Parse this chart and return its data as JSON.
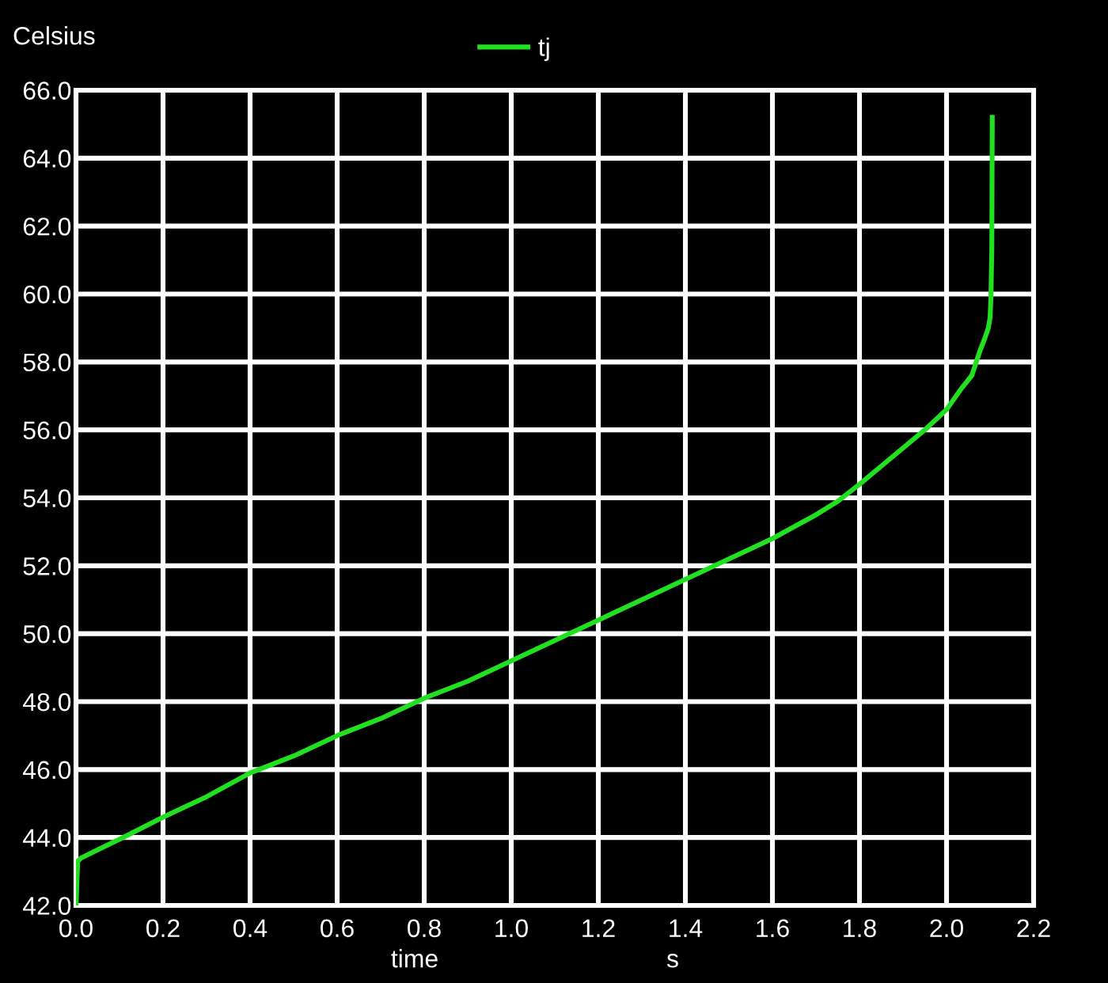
{
  "chart_data": {
    "type": "line",
    "xlabel": "time",
    "ylabel": "Celsius",
    "annotations": [
      "s"
    ],
    "x": [
      0,
      0.004,
      0.012,
      0.06,
      0.108,
      0.2,
      0.3,
      0.4,
      0.5,
      0.6,
      0.7,
      0.8,
      0.9,
      1.0,
      1.1,
      1.2,
      1.3,
      1.4,
      1.5,
      1.6,
      1.7,
      1.75,
      1.8,
      1.875,
      1.95,
      2.0,
      2.033,
      2.058,
      2.076,
      2.088,
      2.096,
      2.1,
      2.102,
      2.104,
      2.105
    ],
    "series": [
      {
        "name": "tj",
        "color": "#20e020",
        "values": [
          42.0,
          43.3,
          43.4,
          43.7,
          44.0,
          44.6,
          45.2,
          45.9,
          46.4,
          47.0,
          47.5,
          48.1,
          48.6,
          49.2,
          49.8,
          50.4,
          51.0,
          51.6,
          52.2,
          52.8,
          53.5,
          53.9,
          54.4,
          55.2,
          56.0,
          56.6,
          57.2,
          57.6,
          58.3,
          58.7,
          59.0,
          59.3,
          59.9,
          61.3,
          65.2
        ]
      }
    ],
    "xlim": [
      0,
      2.2
    ],
    "ylim": [
      42,
      66
    ],
    "xticks": [
      {
        "value": 0,
        "label": "0.0"
      },
      {
        "value": 0.2,
        "label": "0.2"
      },
      {
        "value": 0.4,
        "label": "0.4"
      },
      {
        "value": 0.6,
        "label": "0.6"
      },
      {
        "value": 0.8,
        "label": "0.8"
      },
      {
        "value": 1.0,
        "label": "1.0"
      },
      {
        "value": 1.2,
        "label": "1.2"
      },
      {
        "value": 1.4,
        "label": "1.4"
      },
      {
        "value": 1.6,
        "label": "1.6"
      },
      {
        "value": 1.8,
        "label": "1.8"
      },
      {
        "value": 2.0,
        "label": "2.0"
      },
      {
        "value": 2.2,
        "label": "2.2"
      }
    ],
    "yticks": [
      {
        "value": 42,
        "label": "42.0"
      },
      {
        "value": 44,
        "label": "44.0"
      },
      {
        "value": 46,
        "label": "46.0"
      },
      {
        "value": 48,
        "label": "48.0"
      },
      {
        "value": 50,
        "label": "50.0"
      },
      {
        "value": 52,
        "label": "52.0"
      },
      {
        "value": 54,
        "label": "54.0"
      },
      {
        "value": 56,
        "label": "56.0"
      },
      {
        "value": 58,
        "label": "58.0"
      },
      {
        "value": 60,
        "label": "60.0"
      },
      {
        "value": 62,
        "label": "62.0"
      },
      {
        "value": 64,
        "label": "64.0"
      },
      {
        "value": 66,
        "label": "66.0"
      }
    ],
    "grid": true,
    "legend": "top",
    "marker": "none",
    "line_style": "solid"
  }
}
